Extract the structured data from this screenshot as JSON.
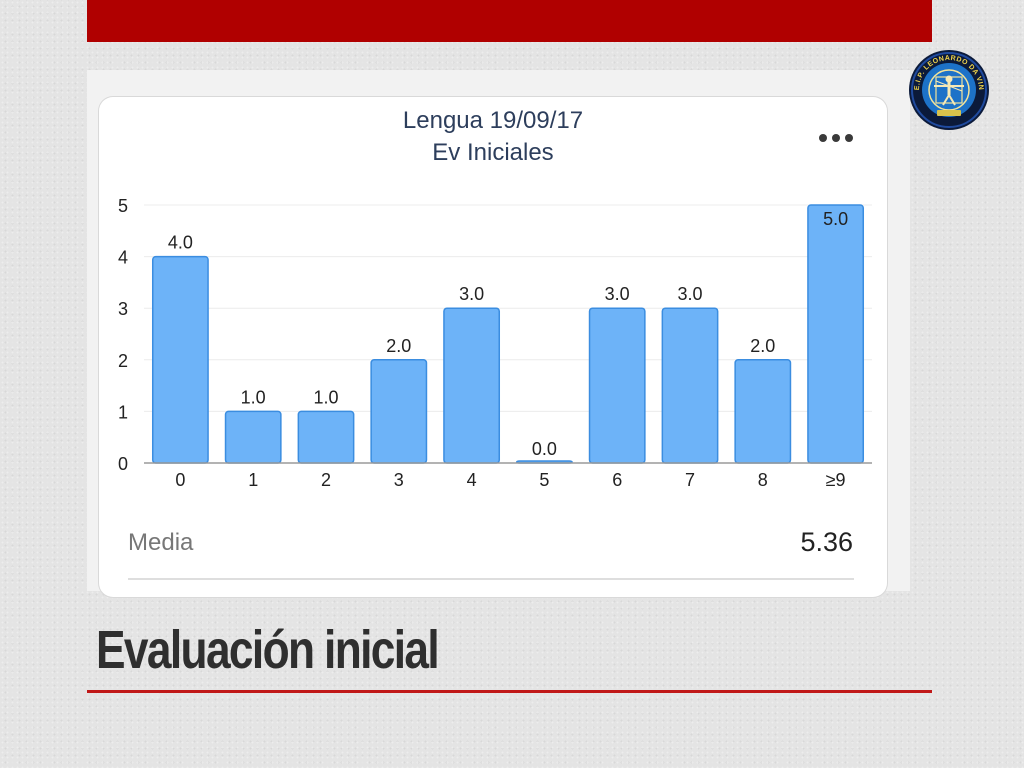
{
  "slide": {
    "title": "Evaluación inicial",
    "colors": {
      "accent_bar": "#b00000",
      "underline": "#c01818",
      "bar_fill": "#6db3f8",
      "bar_border": "#3b8de0"
    }
  },
  "card": {
    "title_line1": "Lengua 19/09/17",
    "title_line2": "Ev Iniciales",
    "more_icon": "more-horizontal-icon",
    "media_label": "Media",
    "media_value": "5.36"
  },
  "logo": {
    "icon": "vitruvian-man-seal-icon",
    "text": "C.E.I.P. LEONARDO DA VINCI"
  },
  "chart_data": {
    "type": "bar",
    "categories": [
      "0",
      "1",
      "2",
      "3",
      "4",
      "5",
      "6",
      "7",
      "8",
      "≥9"
    ],
    "values": [
      4.0,
      1.0,
      1.0,
      2.0,
      3.0,
      0.0,
      3.0,
      3.0,
      2.0,
      5.0
    ],
    "value_labels": [
      "4.0",
      "1.0",
      "1.0",
      "2.0",
      "3.0",
      "0.0",
      "3.0",
      "3.0",
      "2.0",
      "5.0"
    ],
    "ylim": [
      0,
      5
    ],
    "yticks": [
      "0",
      "1",
      "2",
      "3",
      "4",
      "5"
    ],
    "grid": true,
    "title": "Lengua 19/09/17 Ev Iniciales",
    "xlabel": "",
    "ylabel": ""
  }
}
